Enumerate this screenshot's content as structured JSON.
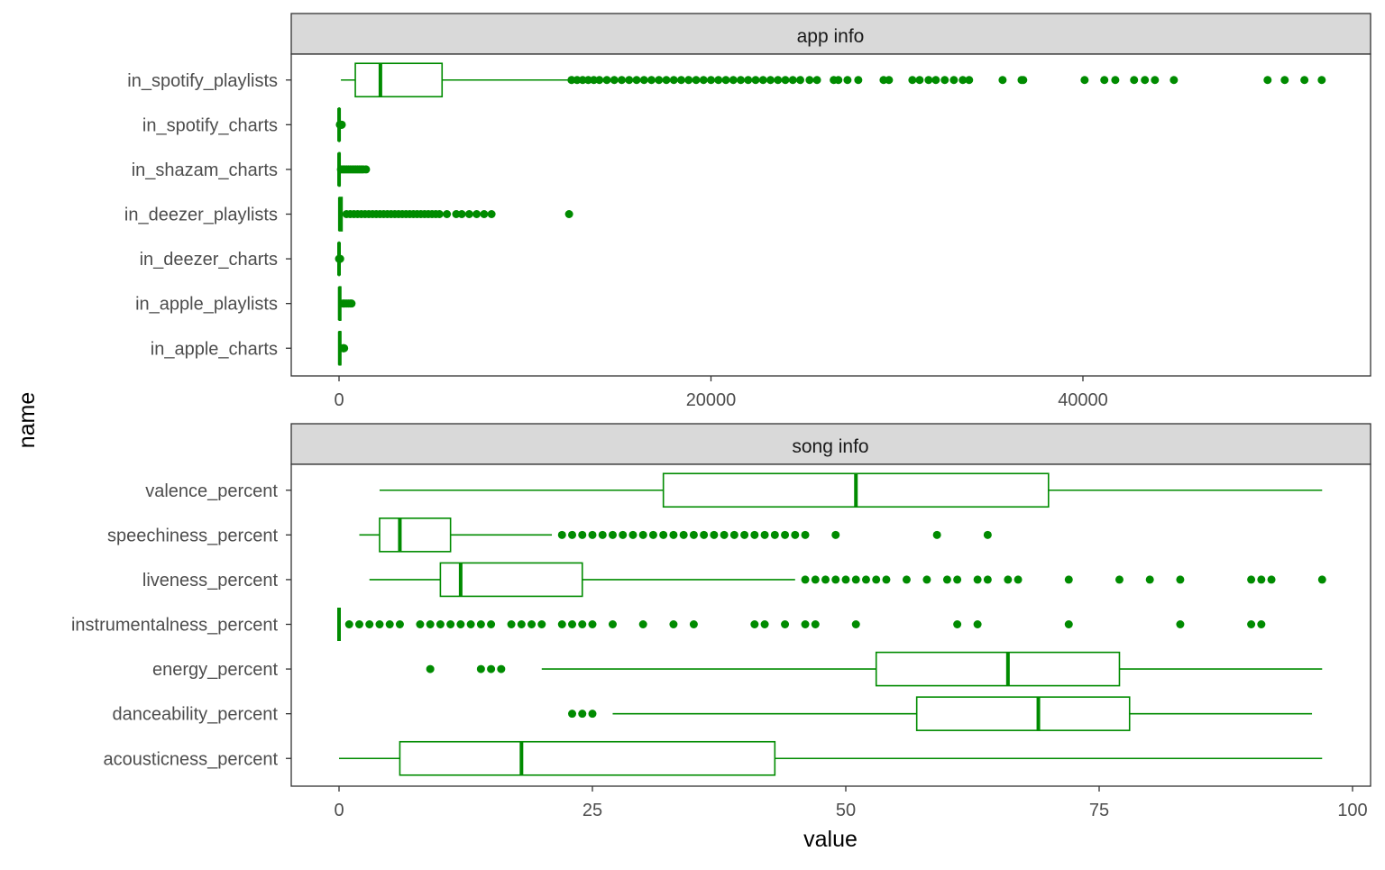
{
  "chart_data": [
    {
      "type": "boxplot",
      "facet": "app info",
      "xlabel": "value",
      "ylabel": "name",
      "xlim": [
        -2600,
        55500
      ],
      "xticks": [
        0,
        20000,
        40000
      ],
      "xtick_labels": [
        "0",
        "20000",
        "40000"
      ],
      "color": "#008b00",
      "series": [
        {
          "name": "in_spotify_playlists",
          "min": 100,
          "q1": 875,
          "median": 2225,
          "q3": 5540,
          "max": 12450,
          "outliers": [
            12500,
            12800,
            13100,
            13400,
            13700,
            14000,
            14400,
            14800,
            15200,
            15600,
            16000,
            16400,
            16800,
            17200,
            17600,
            18000,
            18400,
            18800,
            19200,
            19600,
            20000,
            20400,
            20800,
            21200,
            21600,
            22000,
            22400,
            22800,
            23200,
            23600,
            24000,
            24400,
            24800,
            25300,
            25700,
            26600,
            26850,
            27340,
            27920,
            29280,
            29570,
            30830,
            31220,
            31700,
            32090,
            32570,
            33060,
            33540,
            33880,
            35680,
            36700,
            36790,
            40090,
            41150,
            41740,
            42750,
            43330,
            43870,
            44890,
            49930,
            50850,
            51910,
            52840
          ]
        },
        {
          "name": "in_spotify_charts",
          "min": 0,
          "q1": 0,
          "median": 3,
          "q3": 16,
          "max": 40,
          "outliers": [
            45,
            60,
            80,
            100,
            120,
            147
          ]
        },
        {
          "name": "in_shazam_charts",
          "min": 0,
          "q1": 0,
          "median": 2,
          "q3": 36,
          "max": 90,
          "outliers": [
            100,
            200,
            300,
            400,
            500,
            600,
            700,
            800,
            900,
            1000,
            1100,
            1200,
            1300,
            1451
          ]
        },
        {
          "name": "in_deezer_playlists",
          "min": 0,
          "q1": 13,
          "median": 44,
          "q3": 164,
          "max": 390,
          "outliers": [
            400,
            600,
            800,
            1000,
            1200,
            1400,
            1600,
            1800,
            2000,
            2200,
            2400,
            2600,
            2800,
            3000,
            3200,
            3400,
            3600,
            3800,
            4000,
            4200,
            4400,
            4600,
            4800,
            5000,
            5200,
            5400,
            5800,
            6300,
            6600,
            7000,
            7400,
            7800,
            8200,
            12370
          ]
        },
        {
          "name": "in_deezer_charts",
          "min": 0,
          "q1": 0,
          "median": 0,
          "q3": 2,
          "max": 5,
          "outliers": [
            6,
            10,
            20,
            30,
            40,
            58
          ]
        },
        {
          "name": "in_apple_playlists",
          "min": 0,
          "q1": 13,
          "median": 34,
          "q3": 88,
          "max": 200,
          "outliers": [
            210,
            300,
            400,
            500,
            600,
            672
          ]
        },
        {
          "name": "in_apple_charts",
          "min": 0,
          "q1": 7,
          "median": 38,
          "q3": 87,
          "max": 205,
          "outliers": [
            210,
            240,
            275
          ]
        }
      ]
    },
    {
      "type": "boxplot",
      "facet": "song info",
      "xlabel": "value",
      "ylabel": "name",
      "xlim": [
        -4.7,
        102
      ],
      "xticks": [
        0,
        25,
        50,
        75,
        100
      ],
      "xtick_labels": [
        "0",
        "25",
        "50",
        "75",
        "100"
      ],
      "color": "#008b00",
      "series": [
        {
          "name": "valence_percent",
          "min": 4,
          "q1": 32,
          "median": 51,
          "q3": 70,
          "max": 97,
          "outliers": []
        },
        {
          "name": "speechiness_percent",
          "min": 2,
          "q1": 4,
          "median": 6,
          "q3": 11,
          "max": 21,
          "outliers": [
            22,
            23,
            24,
            25,
            26,
            27,
            28,
            29,
            30,
            31,
            32,
            33,
            34,
            35,
            36,
            37,
            38,
            39,
            40,
            41,
            42,
            43,
            44,
            45,
            46,
            49,
            59,
            64
          ]
        },
        {
          "name": "liveness_percent",
          "min": 3,
          "q1": 10,
          "median": 12,
          "q3": 24,
          "max": 45,
          "outliers": [
            46,
            47,
            48,
            49,
            50,
            51,
            52,
            53,
            54,
            56,
            58,
            60,
            61,
            63,
            64,
            66,
            67,
            72,
            77,
            80,
            83,
            90,
            91,
            92,
            97
          ]
        },
        {
          "name": "instrumentalness_percent",
          "min": 0,
          "q1": 0,
          "median": 0,
          "q3": 0,
          "max": 0,
          "outliers": [
            1,
            2,
            3,
            4,
            5,
            6,
            8,
            9,
            10,
            11,
            12,
            13,
            14,
            15,
            17,
            18,
            19,
            20,
            22,
            23,
            24,
            25,
            27,
            30,
            33,
            35,
            41,
            42,
            44,
            46,
            47,
            51,
            61,
            63,
            72,
            83,
            90,
            91
          ]
        },
        {
          "name": "energy_percent",
          "min": 20,
          "q1": 53,
          "median": 66,
          "q3": 77,
          "max": 97,
          "outliers": [
            9,
            14,
            15,
            16
          ]
        },
        {
          "name": "danceability_percent",
          "min": 27,
          "q1": 57,
          "median": 69,
          "q3": 78,
          "max": 96,
          "outliers": [
            23,
            24,
            25
          ]
        },
        {
          "name": "acousticness_percent",
          "min": 0,
          "q1": 6,
          "median": 18,
          "q3": 43,
          "max": 97,
          "outliers": []
        }
      ]
    }
  ]
}
